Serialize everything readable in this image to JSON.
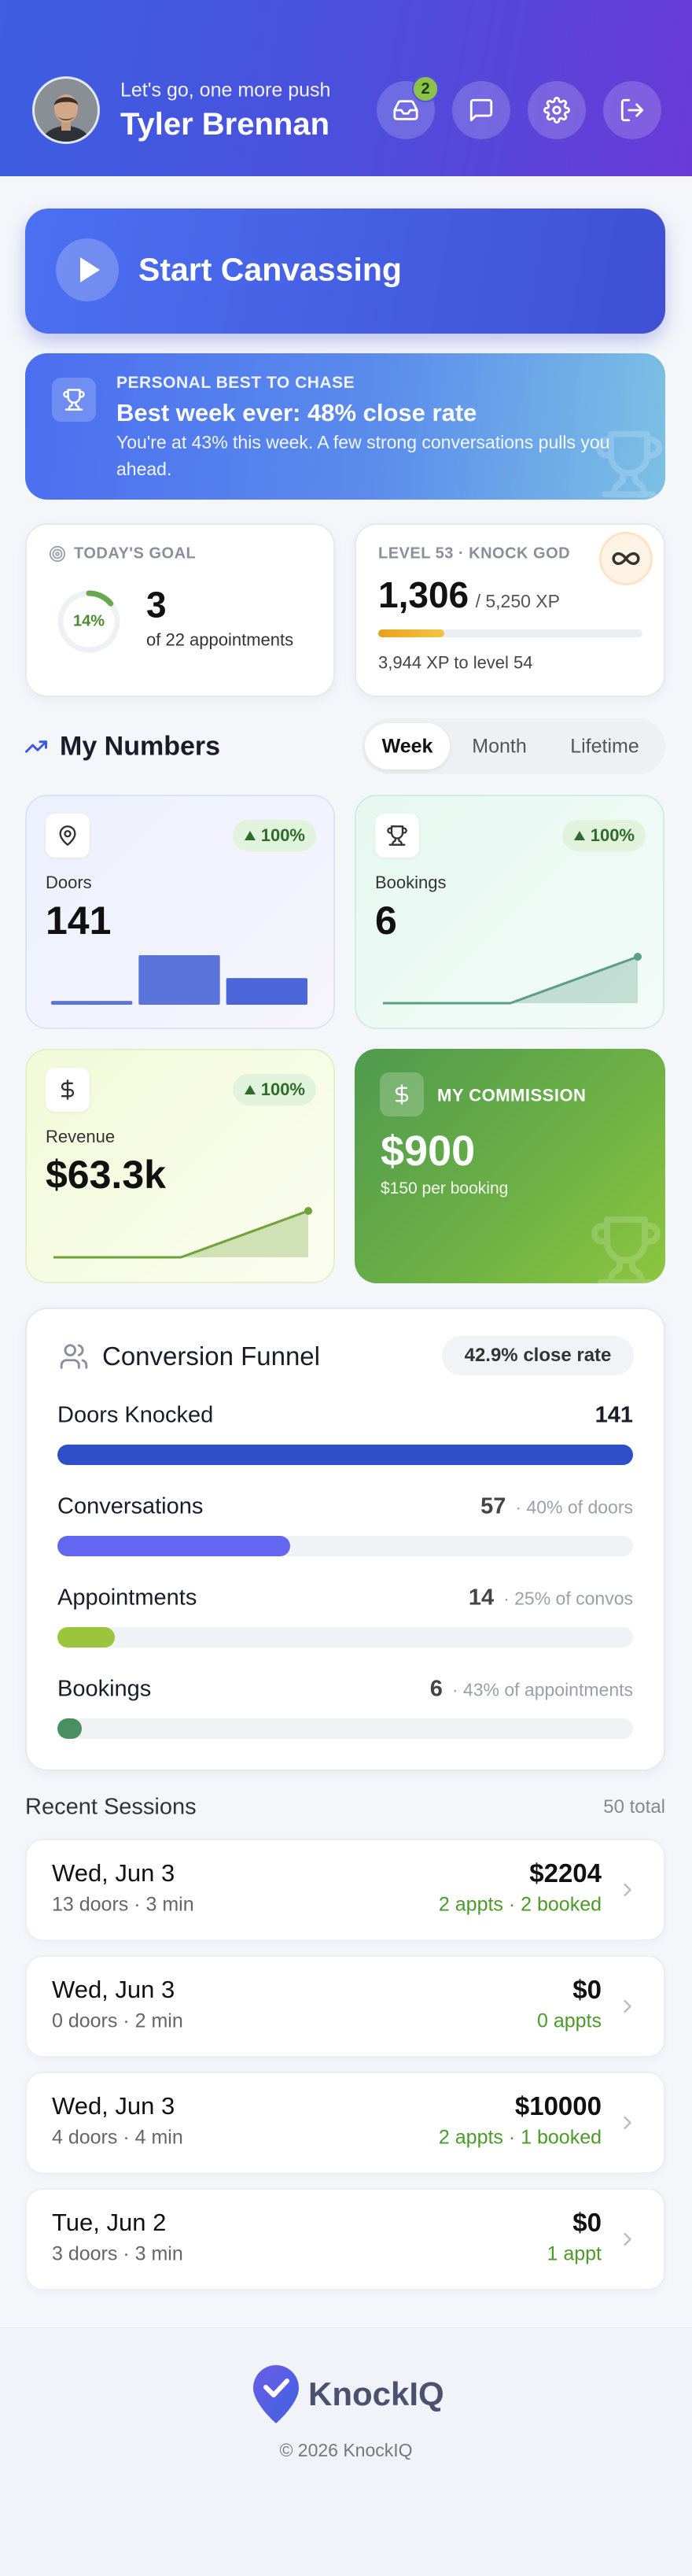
{
  "header": {
    "greeting": "Let's go, one more push",
    "name": "Tyler Brennan",
    "notification_count": "2"
  },
  "start_button": "Start Canvassing",
  "personal_best": {
    "eyebrow": "PERSONAL BEST TO CHASE",
    "title": "Best week ever: 48% close rate",
    "body": "You're at 43% this week. A few strong conversations pulls you ahead."
  },
  "todays_goal": {
    "label": "TODAY'S GOAL",
    "percent": {
      "value": 14,
      "label": "14%"
    },
    "count": "3",
    "target": "of 22 appointments"
  },
  "level": {
    "label": "LEVEL 53 · KNOCK GOD",
    "xp": {
      "value": 1306,
      "label": "1,306"
    },
    "xp_max": {
      "value": 5250,
      "label": "/ 5,250 XP"
    },
    "remaining": "3,944 XP to level 54"
  },
  "my_numbers": {
    "title": "My Numbers",
    "tabs": [
      "Week",
      "Month",
      "Lifetime"
    ],
    "active_tab": 0,
    "cards": [
      {
        "label": "Doors",
        "value": "141",
        "change": "100%",
        "chart": "bar",
        "trend": [
          1,
          13,
          7
        ],
        "color": "#4a66d8"
      },
      {
        "label": "Bookings",
        "value": "6",
        "change": "100%",
        "chart": "line",
        "trend": [
          0,
          0,
          6
        ],
        "color": "#5a9e86"
      },
      {
        "label": "Revenue",
        "value": "$63.3k",
        "change": "100%",
        "chart": "line",
        "trend": [
          0,
          0,
          63.3
        ],
        "color": "#6fa23a"
      }
    ]
  },
  "commission": {
    "title": "MY COMMISSION",
    "amount": "$900",
    "rate": "$150 per booking"
  },
  "funnel": {
    "title": "Conversion Funnel",
    "close_rate": "42.9% close rate",
    "stages": [
      {
        "label": "Doors Knocked",
        "value": 141,
        "color": "#2f4fc8"
      },
      {
        "label": "Conversations",
        "value": 57,
        "note": "· 40% of doors",
        "color": "#6366f1"
      },
      {
        "label": "Appointments",
        "value": 14,
        "note": "· 25% of convos",
        "color": "#9bc53d"
      },
      {
        "label": "Bookings",
        "value": 6,
        "note": "· 43% of appointments",
        "color": "#4a8f62"
      }
    ]
  },
  "recent_sessions": {
    "title": "Recent Sessions",
    "total": "50 total",
    "sessions": [
      {
        "date": "Wed, Jun 3",
        "summary": "13 doors · 3 min",
        "amount": "$2204",
        "detail": "2 appts · 2 booked"
      },
      {
        "date": "Wed, Jun 3",
        "summary": "0 doors · 2 min",
        "amount": "$0",
        "detail": "0 appts"
      },
      {
        "date": "Wed, Jun 3",
        "summary": "4 doors · 4 min",
        "amount": "$10000",
        "detail": "2 appts · 1 booked"
      },
      {
        "date": "Tue, Jun 2",
        "summary": "3 doors · 3 min",
        "amount": "$0",
        "detail": "1 appt"
      }
    ]
  },
  "footer": {
    "brand": "KnockIQ",
    "copyright": "© 2026 KnockIQ"
  }
}
